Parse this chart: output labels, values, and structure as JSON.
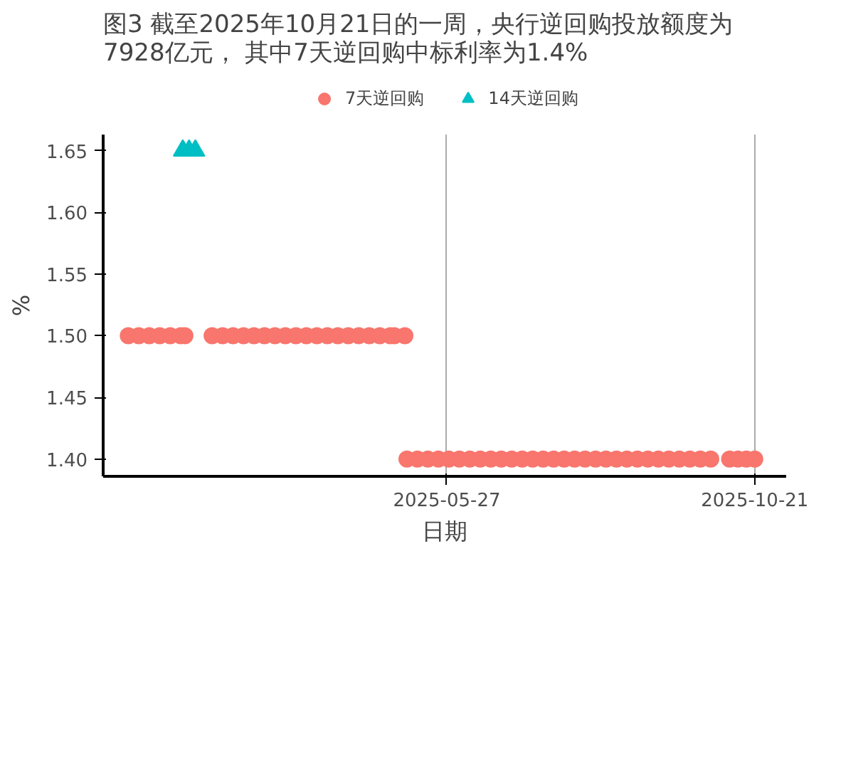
{
  "chart_data": {
    "type": "scatter",
    "title": "图3  截至2025年10月21日的一周，央行逆回购投放额度为\n      7928亿元， 其中7天逆回购中标利率为1.4%",
    "xlabel": "日期",
    "ylabel": "%",
    "xlim": [
      "2024-12-14",
      "2025-11-05"
    ],
    "xticks": [
      "2025-05-27",
      "2025-10-21"
    ],
    "ylim": [
      1.386,
      1.663
    ],
    "yticks": [
      {
        "value": 1.4,
        "label": "1.40"
      },
      {
        "value": 1.45,
        "label": "1.45"
      },
      {
        "value": 1.5,
        "label": "1.50"
      },
      {
        "value": 1.55,
        "label": "1.55"
      },
      {
        "value": 1.6,
        "label": "1.60"
      },
      {
        "value": 1.65,
        "label": "1.65"
      }
    ],
    "grid": "x",
    "legend": "top",
    "series": [
      {
        "name": "7天逆回购",
        "color": "#f8766d",
        "marker": "circle",
        "x": [
          "2024-12-26",
          "2024-12-31",
          "2025-01-05",
          "2025-01-10",
          "2025-01-15",
          "2025-01-20",
          "2025-01-22",
          "2025-02-04",
          "2025-02-09",
          "2025-02-14",
          "2025-02-19",
          "2025-02-24",
          "2025-03-01",
          "2025-03-06",
          "2025-03-11",
          "2025-03-16",
          "2025-03-21",
          "2025-03-26",
          "2025-03-31",
          "2025-04-05",
          "2025-04-10",
          "2025-04-15",
          "2025-04-20",
          "2025-04-25",
          "2025-04-30",
          "2025-05-02",
          "2025-05-07",
          "2025-05-08",
          "2025-05-13",
          "2025-05-18",
          "2025-05-23",
          "2025-05-28",
          "2025-06-02",
          "2025-06-07",
          "2025-06-12",
          "2025-06-17",
          "2025-06-22",
          "2025-06-27",
          "2025-07-02",
          "2025-07-07",
          "2025-07-12",
          "2025-07-17",
          "2025-07-22",
          "2025-07-27",
          "2025-08-01",
          "2025-08-06",
          "2025-08-11",
          "2025-08-16",
          "2025-08-21",
          "2025-08-26",
          "2025-08-31",
          "2025-09-05",
          "2025-09-10",
          "2025-09-15",
          "2025-09-20",
          "2025-09-25",
          "2025-09-30",
          "2025-10-09",
          "2025-10-13",
          "2025-10-17",
          "2025-10-21"
        ],
        "values": [
          1.5,
          1.5,
          1.5,
          1.5,
          1.5,
          1.5,
          1.5,
          1.5,
          1.5,
          1.5,
          1.5,
          1.5,
          1.5,
          1.5,
          1.5,
          1.5,
          1.5,
          1.5,
          1.5,
          1.5,
          1.5,
          1.5,
          1.5,
          1.5,
          1.5,
          1.5,
          1.5,
          1.4,
          1.4,
          1.4,
          1.4,
          1.4,
          1.4,
          1.4,
          1.4,
          1.4,
          1.4,
          1.4,
          1.4,
          1.4,
          1.4,
          1.4,
          1.4,
          1.4,
          1.4,
          1.4,
          1.4,
          1.4,
          1.4,
          1.4,
          1.4,
          1.4,
          1.4,
          1.4,
          1.4,
          1.4,
          1.4,
          1.4,
          1.4,
          1.4,
          1.4
        ]
      },
      {
        "name": "14天逆回购",
        "color": "#00bfc4",
        "marker": "triangle",
        "x": [
          "2025-01-21",
          "2025-01-24",
          "2025-01-27"
        ],
        "values": [
          1.65,
          1.65,
          1.65
        ]
      }
    ]
  }
}
